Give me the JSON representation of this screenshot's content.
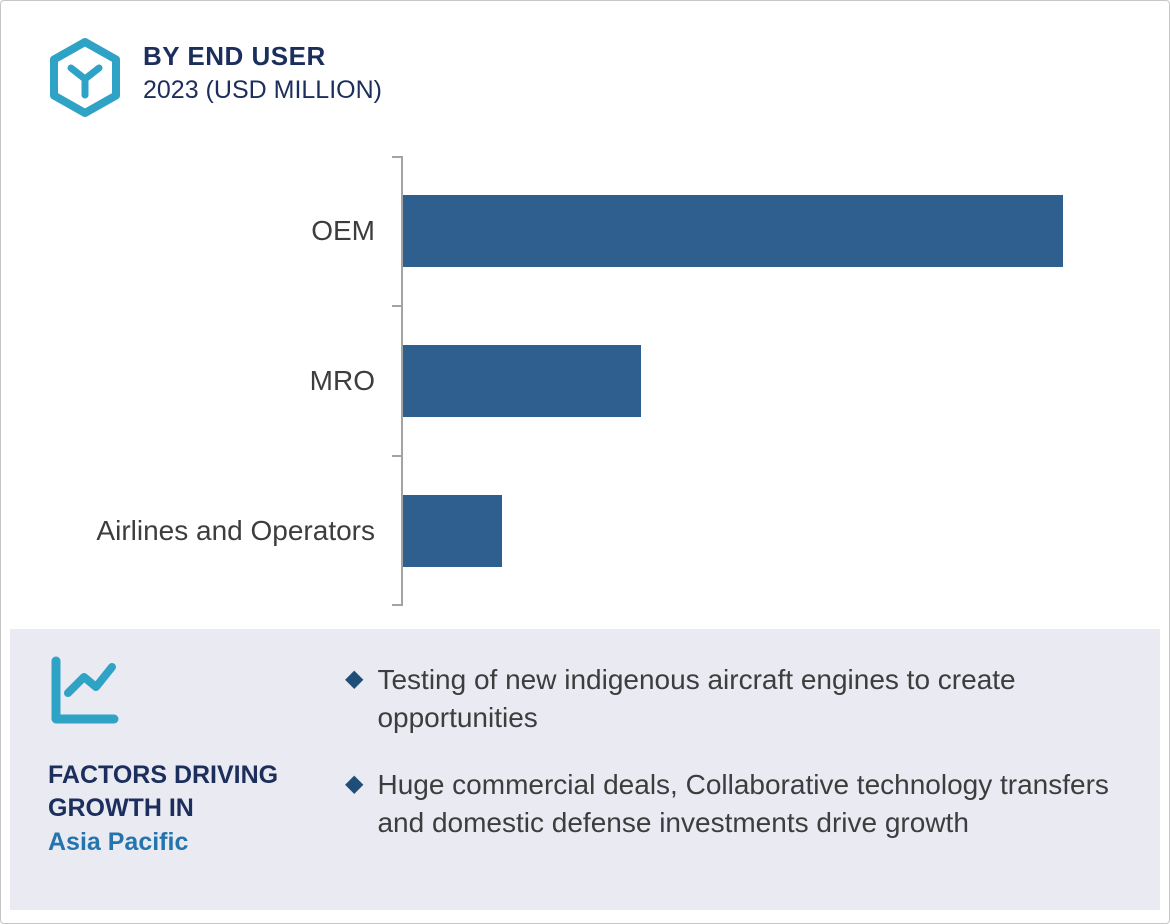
{
  "header": {
    "title": "BY END USER",
    "subtitle": "2023 (USD MILLION)"
  },
  "chart_data": {
    "type": "bar",
    "orientation": "horizontal",
    "title": "BY END USER",
    "subtitle": "2023 (USD MILLION)",
    "categories": [
      "OEM",
      "MRO",
      "Airlines and Operators"
    ],
    "values": [
      100,
      36,
      15
    ],
    "value_scale": "relative, max = 100 (no numeric data labels shown)",
    "xlabel": "",
    "ylabel": "",
    "xlim": [
      0,
      105
    ],
    "grid": false,
    "legend": false,
    "bar_color": "#2f5f8f"
  },
  "factors": {
    "heading_line1": "FACTORS DRIVING",
    "heading_line2": "GROWTH IN",
    "region": "Asia Pacific",
    "bullet_marker": "◆",
    "bullets": [
      "Testing of new indigenous aircraft engines to create opportunities",
      "Huge commercial deals, Collaborative technology transfers and domestic defense investments drive growth"
    ]
  },
  "icons": {
    "hexagon_logo": "hexagon-logo-icon",
    "growth_chart": "line-chart-icon"
  },
  "colors": {
    "bar": "#2f5f8f",
    "navy_text": "#1b2e5c",
    "teal_icon": "#2fa3c6",
    "region_blue": "#2474ad",
    "panel_background": "#e9eaf2",
    "bullet_diamond": "#1f4e79",
    "axis": "#a3a3a3",
    "body_text": "#3d3d3d"
  }
}
